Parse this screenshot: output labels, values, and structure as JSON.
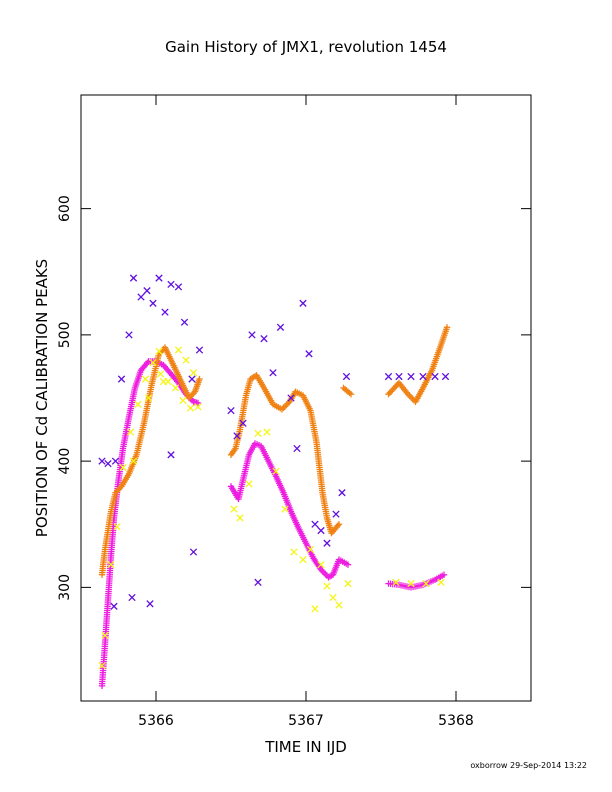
{
  "chart_data": {
    "type": "scatter",
    "title": "Gain History of JMX1, revolution 1454",
    "xlabel": "TIME IN IJD",
    "ylabel": "POSITION OF Cd CALIBRATION PEAKS",
    "xlim": [
      5365.5,
      5368.5
    ],
    "ylim": [
      210,
      690
    ],
    "xticks": [
      5366,
      5367,
      5368
    ],
    "xtick_labels": [
      "5366",
      "5367",
      "5368"
    ],
    "yticks": [
      300,
      400,
      500,
      600
    ],
    "ytick_labels": [
      "300",
      "400",
      "500",
      "600"
    ],
    "grid": false,
    "footer": "oxborrow 29-Sep-2014 13:22",
    "series": [
      {
        "color": "#ee1ee0",
        "marker": "plus",
        "segments": [
          [
            [
              5365.64,
              222
            ],
            [
              5365.66,
              255
            ],
            [
              5365.68,
              290
            ],
            [
              5365.7,
              325
            ],
            [
              5365.72,
              355
            ],
            [
              5365.75,
              385
            ],
            [
              5365.78,
              410
            ],
            [
              5365.82,
              435
            ],
            [
              5365.86,
              458
            ],
            [
              5365.9,
              472
            ],
            [
              5365.95,
              479
            ],
            [
              5366.0,
              479
            ],
            [
              5366.05,
              476
            ],
            [
              5366.1,
              469
            ],
            [
              5366.15,
              462
            ],
            [
              5366.2,
              453
            ],
            [
              5366.25,
              447
            ],
            [
              5366.28,
              446
            ]
          ],
          [
            [
              5366.5,
              380
            ],
            [
              5366.55,
              370
            ],
            [
              5366.58,
              385
            ],
            [
              5366.62,
              405
            ],
            [
              5366.66,
              414
            ],
            [
              5366.7,
              412
            ],
            [
              5366.75,
              400
            ],
            [
              5366.8,
              388
            ],
            [
              5366.85,
              375
            ],
            [
              5366.9,
              360
            ],
            [
              5366.95,
              347
            ],
            [
              5367.0,
              335
            ],
            [
              5367.05,
              323
            ],
            [
              5367.1,
              314
            ],
            [
              5367.15,
              308
            ],
            [
              5367.18,
              310
            ],
            [
              5367.22,
              322
            ],
            [
              5367.28,
              318
            ]
          ],
          [
            [
              5367.55,
              303
            ],
            [
              5367.62,
              302
            ],
            [
              5367.7,
              300
            ],
            [
              5367.78,
              302
            ],
            [
              5367.86,
              306
            ],
            [
              5367.92,
              310
            ]
          ]
        ]
      },
      {
        "color": "#f08214",
        "marker": "plus",
        "segments": [
          [
            [
              5365.64,
              310
            ],
            [
              5365.66,
              330
            ],
            [
              5365.7,
              360
            ],
            [
              5365.73,
              375
            ],
            [
              5365.77,
              380
            ],
            [
              5365.82,
              390
            ],
            [
              5365.87,
              405
            ],
            [
              5365.92,
              430
            ],
            [
              5365.97,
              460
            ],
            [
              5366.02,
              485
            ],
            [
              5366.06,
              490
            ],
            [
              5366.1,
              480
            ],
            [
              5366.14,
              470
            ],
            [
              5366.18,
              460
            ],
            [
              5366.22,
              450
            ],
            [
              5366.26,
              455
            ],
            [
              5366.29,
              465
            ]
          ],
          [
            [
              5366.5,
              405
            ],
            [
              5366.53,
              410
            ],
            [
              5366.56,
              425
            ],
            [
              5366.6,
              452
            ],
            [
              5366.63,
              465
            ],
            [
              5366.67,
              468
            ],
            [
              5366.72,
              458
            ],
            [
              5366.78,
              445
            ],
            [
              5366.84,
              441
            ],
            [
              5366.89,
              447
            ],
            [
              5366.93,
              455
            ],
            [
              5366.98,
              452
            ],
            [
              5367.03,
              440
            ],
            [
              5367.07,
              415
            ],
            [
              5367.11,
              375
            ],
            [
              5367.14,
              355
            ],
            [
              5367.17,
              343
            ],
            [
              5367.22,
              350
            ]
          ],
          [
            [
              5367.25,
              458
            ],
            [
              5367.3,
              453
            ]
          ],
          [
            [
              5367.55,
              453
            ],
            [
              5367.62,
              462
            ],
            [
              5367.68,
              453
            ],
            [
              5367.73,
              447
            ],
            [
              5367.78,
              458
            ],
            [
              5367.84,
              472
            ],
            [
              5367.9,
              492
            ],
            [
              5367.94,
              506
            ]
          ]
        ]
      },
      {
        "color": "#f5f514",
        "marker": "cross",
        "points": [
          [
            5365.64,
            238
          ],
          [
            5365.66,
            262
          ],
          [
            5365.7,
            318
          ],
          [
            5365.74,
            348
          ],
          [
            5365.78,
            395
          ],
          [
            5365.83,
            423
          ],
          [
            5365.88,
            445
          ],
          [
            5365.93,
            465
          ],
          [
            5365.98,
            478
          ],
          [
            5366.03,
            469
          ],
          [
            5366.08,
            463
          ],
          [
            5366.13,
            458
          ],
          [
            5366.18,
            448
          ],
          [
            5366.23,
            442
          ],
          [
            5366.28,
            443
          ],
          [
            5366.52,
            362
          ],
          [
            5366.56,
            355
          ],
          [
            5366.62,
            382
          ],
          [
            5366.68,
            422
          ],
          [
            5366.74,
            423
          ],
          [
            5366.8,
            392
          ],
          [
            5366.86,
            362
          ],
          [
            5366.92,
            328
          ],
          [
            5366.98,
            322
          ],
          [
            5367.03,
            330
          ],
          [
            5367.06,
            283
          ],
          [
            5367.1,
            318
          ],
          [
            5367.14,
            301
          ],
          [
            5367.18,
            292
          ],
          [
            5367.22,
            286
          ],
          [
            5367.28,
            303
          ],
          [
            5367.6,
            304
          ],
          [
            5367.7,
            303
          ],
          [
            5367.8,
            303
          ],
          [
            5367.9,
            304
          ],
          [
            5366.05,
            463
          ],
          [
            5366.02,
            487
          ],
          [
            5365.85,
            400
          ],
          [
            5365.95,
            450
          ],
          [
            5366.15,
            488
          ],
          [
            5366.2,
            480
          ],
          [
            5366.25,
            470
          ]
        ]
      },
      {
        "color": "#6010e0",
        "marker": "cross",
        "points": [
          [
            5365.64,
            400
          ],
          [
            5365.68,
            398
          ],
          [
            5365.73,
            400
          ],
          [
            5365.77,
            465
          ],
          [
            5365.82,
            500
          ],
          [
            5365.85,
            545
          ],
          [
            5365.9,
            530
          ],
          [
            5365.94,
            535
          ],
          [
            5365.98,
            525
          ],
          [
            5366.02,
            545
          ],
          [
            5366.06,
            518
          ],
          [
            5366.1,
            540
          ],
          [
            5366.15,
            538
          ],
          [
            5366.19,
            510
          ],
          [
            5366.24,
            465
          ],
          [
            5366.29,
            488
          ],
          [
            5366.1,
            405
          ],
          [
            5366.25,
            328
          ],
          [
            5365.96,
            287
          ],
          [
            5365.84,
            292
          ],
          [
            5365.72,
            285
          ],
          [
            5366.5,
            440
          ],
          [
            5366.54,
            420
          ],
          [
            5366.58,
            430
          ],
          [
            5366.64,
            500
          ],
          [
            5366.68,
            304
          ],
          [
            5366.72,
            497
          ],
          [
            5366.78,
            470
          ],
          [
            5366.83,
            506
          ],
          [
            5366.9,
            450
          ],
          [
            5366.94,
            410
          ],
          [
            5366.98,
            525
          ],
          [
            5367.02,
            485
          ],
          [
            5367.06,
            350
          ],
          [
            5367.1,
            345
          ],
          [
            5367.14,
            335
          ],
          [
            5367.2,
            358
          ],
          [
            5367.24,
            375
          ],
          [
            5367.27,
            467
          ],
          [
            5367.55,
            467
          ],
          [
            5367.62,
            467
          ],
          [
            5367.7,
            467
          ],
          [
            5367.78,
            467
          ],
          [
            5367.86,
            467
          ],
          [
            5367.93,
            467
          ]
        ]
      }
    ]
  }
}
